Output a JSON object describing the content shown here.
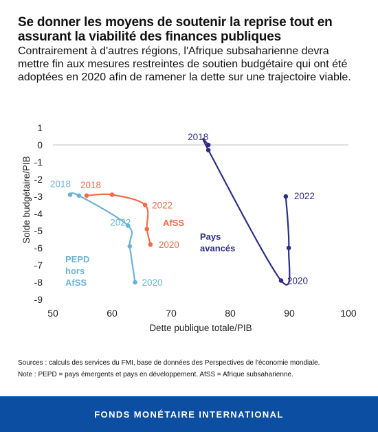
{
  "header": {
    "title": "Se donner les moyens de soutenir la reprise tout en assurant la viabilité des finances publiques",
    "subtitle": "Contrairement à d'autres régions, l'Afrique subsaharienne devra mettre fin aux mesures restreintes de soutien budgétaire qui ont été adoptées en 2020 afin de ramener la dette sur une trajectoire viable."
  },
  "chart_data": {
    "type": "scatter",
    "xlabel": "Dette publique totale/PIB",
    "ylabel": "Solde budgétaire/PIB",
    "xlim": [
      50,
      100
    ],
    "ylim": [
      -9,
      1
    ],
    "xticks": [
      50,
      60,
      70,
      80,
      90,
      100
    ],
    "yticks": [
      1,
      0,
      -1,
      -2,
      -3,
      -4,
      -5,
      -6,
      -7,
      -8,
      -9
    ],
    "grid": false,
    "zero_line": true,
    "series": [
      {
        "name": "PEPD hors AfSS",
        "color": "#6bb3d6",
        "x": [
          52.9,
          54.4,
          62.7,
          63.0,
          63.9
        ],
        "y": [
          -2.9,
          -2.95,
          -4.7,
          -5.9,
          -8.0
        ],
        "labels": [
          {
            "text": "2018",
            "at": 0
          },
          {
            "text": "2022",
            "at": 2
          },
          {
            "text": "2020",
            "at": 4
          }
        ]
      },
      {
        "name": "AfSS",
        "color": "#f26b4a",
        "x": [
          55.7,
          60.0,
          65.6,
          65.9,
          66.5
        ],
        "y": [
          -2.95,
          -2.9,
          -3.5,
          -4.9,
          -5.8
        ],
        "labels": [
          {
            "text": "2018",
            "at": 0
          },
          {
            "text": "2022",
            "at": 2
          },
          {
            "text": "2020",
            "at": 4
          }
        ]
      },
      {
        "name": "Pays avancés",
        "color": "#2b2e83",
        "x": [
          76.3,
          76.3,
          88.6,
          89.9,
          89.4
        ],
        "y": [
          0.0,
          -0.3,
          -7.9,
          -6.0,
          -3.0
        ],
        "labels": [
          {
            "text": "2018",
            "at": 0
          },
          {
            "text": "2020",
            "at": 2
          },
          {
            "text": "2022",
            "at": 4
          }
        ]
      }
    ],
    "series_names": [
      {
        "lines": [
          "PEPD",
          "hors",
          "AfSS"
        ],
        "color": "#6bb3d6"
      },
      {
        "lines": [
          "AfSS"
        ],
        "color": "#f26b4a"
      },
      {
        "lines": [
          "Pays",
          "avancés"
        ],
        "color": "#2b2e83"
      }
    ]
  },
  "notes": {
    "sources": "Sources : calculs des services du FMI, base de données des Perspectives de l'économie mondiale.",
    "note": "Note : PEPD = pays émergents et pays en développement. AfSS = Afrique subsaharienne."
  },
  "banner": {
    "label": "FONDS MONÉTAIRE INTERNATIONAL",
    "background": "#0b4ea2"
  }
}
